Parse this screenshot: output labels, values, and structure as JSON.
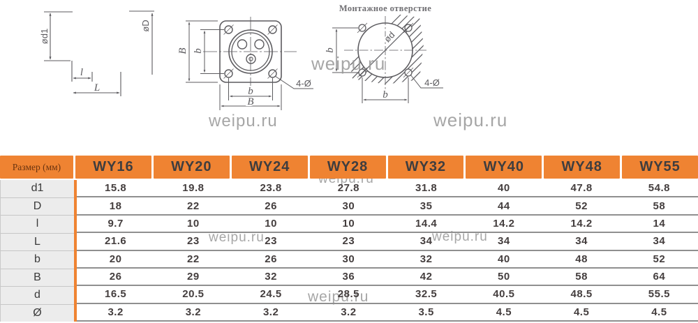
{
  "watermark": {
    "text": "weipu.ru"
  },
  "drawings": {
    "side_view": {
      "dim_d1": "ød1",
      "dim_D": "øD",
      "dim_l": "l",
      "dim_L": "L"
    },
    "front_view": {
      "dim_B_left": "B",
      "dim_b_left": "b",
      "dim_b_bottom": "b",
      "dim_B_bottom": "B",
      "callout": "4-Ø"
    },
    "mounting_hole": {
      "title": "Монтажное отверстие",
      "dim_d": "ød",
      "dim_b_left": "b",
      "dim_b_bottom": "b",
      "callout": "4-Ø"
    }
  },
  "table": {
    "corner_label": "Размер (мм)",
    "columns": [
      "WY16",
      "WY20",
      "WY24",
      "WY28",
      "WY32",
      "WY40",
      "WY48",
      "WY55"
    ],
    "rows": [
      {
        "label": "d1",
        "values": [
          "15.8",
          "19.8",
          "23.8",
          "27.8",
          "31.8",
          "40",
          "47.8",
          "54.8"
        ]
      },
      {
        "label": "D",
        "values": [
          "18",
          "22",
          "26",
          "30",
          "35",
          "44",
          "52",
          "58"
        ]
      },
      {
        "label": "l",
        "values": [
          "9.7",
          "10",
          "10",
          "10",
          "14.4",
          "14.2",
          "14.2",
          "14"
        ]
      },
      {
        "label": "L",
        "values": [
          "21.6",
          "23",
          "23",
          "23",
          "34",
          "34",
          "34",
          "34"
        ]
      },
      {
        "label": "b",
        "values": [
          "20",
          "22",
          "26",
          "30",
          "32",
          "40",
          "48",
          "52"
        ]
      },
      {
        "label": "B",
        "values": [
          "26",
          "29",
          "32",
          "36",
          "42",
          "50",
          "58",
          "64"
        ]
      },
      {
        "label": "d",
        "values": [
          "16.5",
          "20.5",
          "24.5",
          "28.5",
          "32.5",
          "40.5",
          "48.5",
          "55.5"
        ]
      },
      {
        "label": "Ø",
        "values": [
          "3.2",
          "3.2",
          "3.2",
          "3.2",
          "3.5",
          "4.5",
          "4.5",
          "4.5"
        ]
      }
    ]
  },
  "colors": {
    "accent_orange": "#ef8332",
    "line_gray": "#5b5a5e",
    "separator_gray": "#8f8f8f",
    "label_bg": "#ececec"
  }
}
